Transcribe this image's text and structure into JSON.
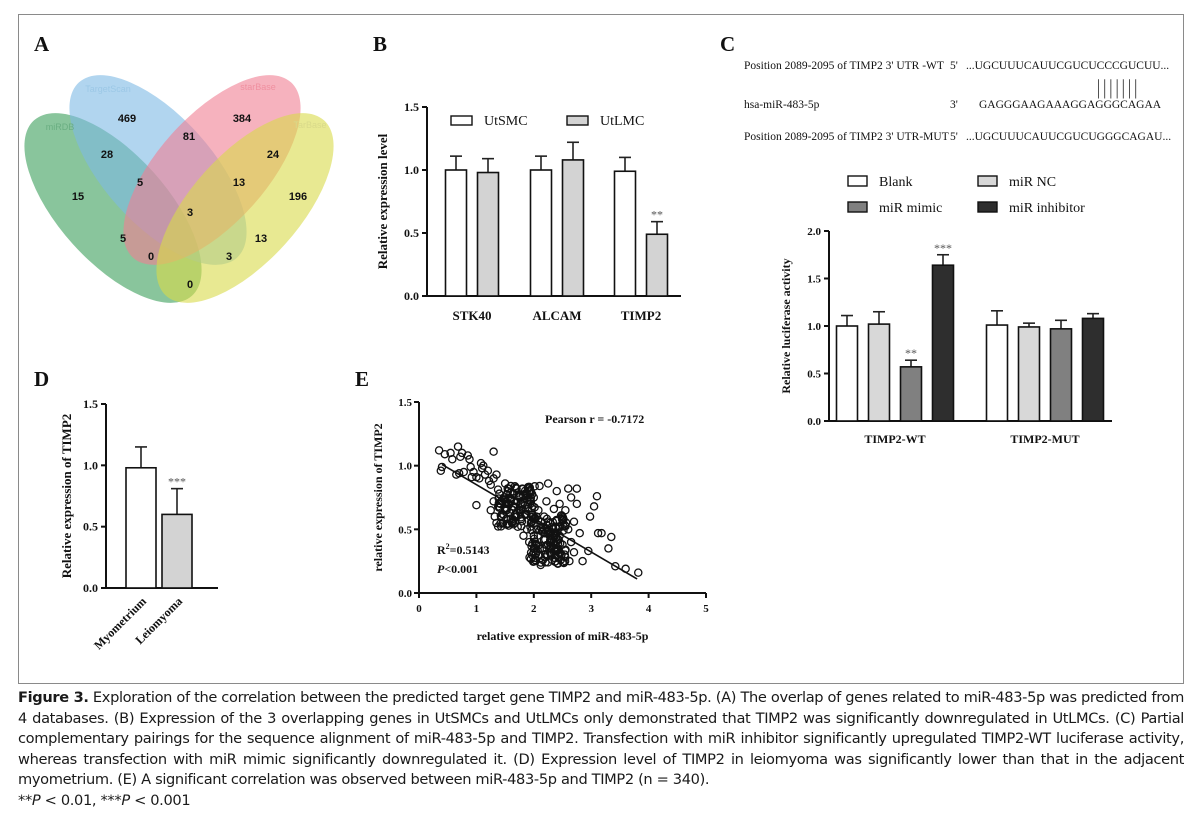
{
  "figure": {
    "caption_title": "Figure 3.",
    "caption_text": " Exploration of the correlation between the predicted target gene TIMP2 and miR-483-5p. (A) The overlap of genes related to miR-483-5p was predicted from 4 databases. (B) Expression of the 3 overlapping genes in UtSMCs and UtLMCs only demonstrated that TIMP2 was significantly downregulated in UtLMCs. (C) Partial complementary pairings for the sequence alignment of miR-483-5p and TIMP2. Transfection with miR inhibitor significantly upregulated TIMP2-WT luciferase activity, whereas transfection with miR mimic significantly downregulated it. (D) Expression level of TIMP2 in leiomyoma was significantly lower than that in the adjacent myometrium. (E) A significant correlation was observed between miR-483-5p and TIMP2 (n = 340).",
    "caption_footnote": "**P < 0.01, ***P < 0.001",
    "panel_letters": {
      "A": "A",
      "B": "B",
      "C": "C",
      "D": "D",
      "E": "E"
    }
  },
  "sequence": {
    "rows": [
      {
        "label": "Position 2089-2095 of TIMP2 3' UTR -WT",
        "end": "5'",
        "seq": "...UGCUUUCAUUCGUCUCCCGUCUU..."
      },
      {
        "label": "hsa-miR-483-5p",
        "end": "3'",
        "seq": "GAGGGAAGAAAGGAGGGCAGAA"
      },
      {
        "label": "Position 2089-2095 of TIMP2 3' UTR-MUT",
        "end": "5'",
        "seq": "...UGCUUUCAUUCGUCUGGGCAGAU..."
      }
    ],
    "pairing_marks": "|||||||"
  },
  "chart_data": [
    {
      "id": "A",
      "type": "venn",
      "title": "",
      "sets": [
        {
          "name": "miRDB",
          "color": "#3a9e5a"
        },
        {
          "name": "TargetScan",
          "color": "#7db9e4"
        },
        {
          "name": "starBase",
          "color": "#f07f93"
        },
        {
          "name": "TarBase",
          "color": "#d9da4a"
        }
      ],
      "regions": [
        {
          "sets": [
            "miRDB"
          ],
          "value": 15
        },
        {
          "sets": [
            "TargetScan"
          ],
          "value": 469
        },
        {
          "sets": [
            "starBase"
          ],
          "value": 384
        },
        {
          "sets": [
            "TarBase"
          ],
          "value": 196
        },
        {
          "sets": [
            "miRDB",
            "TargetScan"
          ],
          "value": 28
        },
        {
          "sets": [
            "TargetScan",
            "starBase"
          ],
          "value": 81
        },
        {
          "sets": [
            "starBase",
            "TarBase"
          ],
          "value": 24
        },
        {
          "sets": [
            "miRDB",
            "TargetScan",
            "starBase"
          ],
          "value": 5
        },
        {
          "sets": [
            "TargetScan",
            "starBase",
            "TarBase"
          ],
          "value": 13
        },
        {
          "sets": [
            "miRDB",
            "TargetScan",
            "starBase",
            "TarBase"
          ],
          "value": 3
        },
        {
          "sets": [
            "miRDB",
            "starBase"
          ],
          "value": 5
        },
        {
          "sets": [
            "TargetScan",
            "TarBase"
          ],
          "value": 13
        },
        {
          "sets": [
            "miRDB",
            "starBase",
            "TarBase"
          ],
          "value": 0
        },
        {
          "sets": [
            "miRDB",
            "TargetScan",
            "TarBase"
          ],
          "value": 3
        },
        {
          "sets": [
            "miRDB",
            "TarBase"
          ],
          "value": 0
        }
      ]
    },
    {
      "id": "B",
      "type": "bar",
      "title": "",
      "xlabel": "",
      "ylabel": "Relative expression level",
      "ylim": [
        0,
        1.5
      ],
      "yticks": [
        "0.0",
        "0.5",
        "1.0",
        "1.5"
      ],
      "categories": [
        "STK40",
        "ALCAM",
        "TIMP2"
      ],
      "legend": "top",
      "series": [
        {
          "name": "UtSMC",
          "color": "#ffffff",
          "values": [
            1.0,
            1.0,
            0.99
          ],
          "errors": [
            0.11,
            0.11,
            0.11
          ]
        },
        {
          "name": "UtLMC",
          "color": "#d3d3d3",
          "values": [
            0.98,
            1.08,
            0.49
          ],
          "errors": [
            0.11,
            0.14,
            0.1
          ]
        }
      ],
      "annotations": [
        {
          "category": "TIMP2",
          "series": "UtLMC",
          "text": "**"
        }
      ]
    },
    {
      "id": "C",
      "type": "bar",
      "title": "",
      "xlabel": "",
      "ylabel": "Relative luciferase activity",
      "ylim": [
        0,
        2.0
      ],
      "yticks": [
        "0.0",
        "0.5",
        "1.0",
        "1.5",
        "2.0"
      ],
      "categories": [
        "TIMP2-WT",
        "TIMP2-MUT"
      ],
      "legend": "top",
      "series": [
        {
          "name": "Blank",
          "color": "#ffffff",
          "values": [
            1.0,
            1.01
          ],
          "errors": [
            0.11,
            0.15
          ]
        },
        {
          "name": "miR NC",
          "color": "#d8d8d8",
          "values": [
            1.02,
            0.99
          ],
          "errors": [
            0.13,
            0.04
          ]
        },
        {
          "name": "miR mimic",
          "color": "#808080",
          "values": [
            0.57,
            0.97
          ],
          "errors": [
            0.07,
            0.09
          ]
        },
        {
          "name": "miR inhibitor",
          "color": "#2e2e2e",
          "values": [
            1.64,
            1.08
          ],
          "errors": [
            0.11,
            0.05
          ]
        }
      ],
      "annotations": [
        {
          "category": "TIMP2-WT",
          "series": "miR mimic",
          "text": "**"
        },
        {
          "category": "TIMP2-WT",
          "series": "miR inhibitor",
          "text": "***"
        }
      ]
    },
    {
      "id": "D",
      "type": "bar",
      "title": "",
      "xlabel": "",
      "ylabel": "Relative expression of TIMP2",
      "ylim": [
        0,
        1.5
      ],
      "yticks": [
        "0.0",
        "0.5",
        "1.0",
        "1.5"
      ],
      "categories": [
        "Myometrium",
        "Leiomyoma"
      ],
      "series": [
        {
          "name": "TIMP2",
          "colors": [
            "#ffffff",
            "#d3d3d3"
          ],
          "values": [
            0.98,
            0.6
          ],
          "errors": [
            0.17,
            0.21
          ]
        }
      ],
      "annotations": [
        {
          "category": "Leiomyoma",
          "text": "***"
        }
      ]
    },
    {
      "id": "E",
      "type": "scatter",
      "title": "",
      "xlabel": "relative expression of miR-483-5p",
      "ylabel": "relative expression of TIMP2",
      "xlim": [
        0,
        5
      ],
      "ylim": [
        0,
        1.5
      ],
      "xticks": [
        "0",
        "1",
        "2",
        "3",
        "4",
        "5"
      ],
      "yticks": [
        "0.0",
        "0.5",
        "1.0",
        "1.5"
      ],
      "n": 340,
      "pearson_label": "Pearson r = -0.7172",
      "r2_label_prefix": "R",
      "r2_label_sup": "2",
      "r2_label_value": "=0.5143",
      "p_label_italic": "P",
      "p_label_value": "<0.001",
      "regression": {
        "x": [
          0.4,
          3.8
        ],
        "y": [
          1.01,
          0.11
        ]
      },
      "points": [
        [
          0.35,
          1.12
        ],
        [
          0.38,
          0.96
        ],
        [
          0.4,
          0.99
        ],
        [
          0.45,
          1.09
        ],
        [
          0.55,
          1.1
        ],
        [
          0.58,
          1.05
        ],
        [
          0.65,
          0.93
        ],
        [
          0.68,
          1.15
        ],
        [
          0.7,
          0.94
        ],
        [
          0.72,
          1.07
        ],
        [
          0.75,
          1.1
        ],
        [
          0.78,
          0.95
        ],
        [
          0.85,
          1.08
        ],
        [
          0.88,
          1.05
        ],
        [
          0.9,
          0.99
        ],
        [
          0.92,
          0.91
        ],
        [
          0.95,
          0.95
        ],
        [
          1.0,
          0.91
        ],
        [
          1.0,
          0.69
        ],
        [
          1.05,
          0.9
        ],
        [
          1.08,
          1.02
        ],
        [
          1.1,
          0.98
        ],
        [
          1.12,
          1.0
        ],
        [
          1.15,
          0.93
        ],
        [
          1.2,
          0.96
        ],
        [
          1.22,
          0.88
        ],
        [
          1.25,
          0.85
        ],
        [
          1.3,
          1.11
        ],
        [
          1.3,
          0.9
        ],
        [
          1.35,
          0.93
        ],
        [
          1.25,
          0.65
        ],
        [
          1.3,
          0.72
        ],
        [
          1.32,
          0.6
        ],
        [
          1.35,
          0.55
        ],
        [
          1.38,
          0.68
        ],
        [
          1.4,
          0.78
        ],
        [
          1.42,
          0.7
        ],
        [
          1.45,
          0.62
        ],
        [
          1.48,
          0.75
        ],
        [
          1.5,
          0.86
        ],
        [
          1.5,
          0.66
        ],
        [
          1.52,
          0.58
        ],
        [
          1.55,
          0.8
        ],
        [
          1.55,
          0.7
        ],
        [
          1.58,
          0.63
        ],
        [
          1.6,
          0.84
        ],
        [
          1.6,
          0.74
        ],
        [
          1.62,
          0.55
        ],
        [
          1.65,
          0.68
        ],
        [
          1.65,
          0.78
        ],
        [
          1.68,
          0.6
        ],
        [
          1.7,
          0.82
        ],
        [
          1.7,
          0.72
        ],
        [
          1.72,
          0.52
        ],
        [
          1.75,
          0.65
        ],
        [
          1.75,
          0.76
        ],
        [
          1.78,
          0.58
        ],
        [
          1.8,
          0.82
        ],
        [
          1.8,
          0.7
        ],
        [
          1.82,
          0.45
        ],
        [
          1.85,
          0.62
        ],
        [
          1.85,
          0.78
        ],
        [
          1.88,
          0.5
        ],
        [
          1.9,
          0.82
        ],
        [
          1.9,
          0.66
        ],
        [
          1.92,
          0.4
        ],
        [
          1.95,
          0.72
        ],
        [
          1.95,
          0.55
        ],
        [
          1.98,
          0.6
        ],
        [
          2.0,
          0.75
        ],
        [
          2.0,
          0.45
        ],
        [
          2.02,
          0.26
        ],
        [
          2.05,
          0.5
        ],
        [
          2.05,
          0.38
        ],
        [
          2.08,
          0.65
        ],
        [
          2.1,
          0.84
        ],
        [
          2.1,
          0.3
        ],
        [
          2.12,
          0.22
        ],
        [
          2.15,
          0.48
        ],
        [
          2.15,
          0.35
        ],
        [
          2.18,
          0.6
        ],
        [
          2.2,
          0.42
        ],
        [
          2.2,
          0.28
        ],
        [
          2.22,
          0.72
        ],
        [
          2.25,
          0.86
        ],
        [
          2.25,
          0.38
        ],
        [
          2.28,
          0.55
        ],
        [
          2.3,
          0.3
        ],
        [
          2.3,
          0.48
        ],
        [
          2.32,
          0.26
        ],
        [
          2.35,
          0.66
        ],
        [
          2.35,
          0.4
        ],
        [
          2.38,
          0.52
        ],
        [
          2.4,
          0.8
        ],
        [
          2.4,
          0.34
        ],
        [
          2.42,
          0.23
        ],
        [
          2.45,
          0.7
        ],
        [
          2.45,
          0.45
        ],
        [
          2.48,
          0.3
        ],
        [
          2.5,
          0.6
        ],
        [
          2.5,
          0.38
        ],
        [
          2.55,
          0.65
        ],
        [
          2.55,
          0.28
        ],
        [
          2.6,
          0.82
        ],
        [
          2.6,
          0.5
        ],
        [
          2.62,
          0.25
        ],
        [
          2.65,
          0.75
        ],
        [
          2.65,
          0.4
        ],
        [
          2.7,
          0.56
        ],
        [
          2.7,
          0.32
        ],
        [
          2.75,
          0.82
        ],
        [
          2.75,
          0.7
        ],
        [
          2.8,
          0.47
        ],
        [
          2.85,
          0.25
        ],
        [
          2.95,
          0.33
        ],
        [
          2.98,
          0.6
        ],
        [
          3.05,
          0.68
        ],
        [
          3.1,
          0.76
        ],
        [
          3.12,
          0.47
        ],
        [
          3.18,
          0.47
        ],
        [
          3.3,
          0.35
        ],
        [
          3.35,
          0.44
        ],
        [
          3.42,
          0.21
        ],
        [
          3.6,
          0.19
        ],
        [
          3.82,
          0.16
        ]
      ]
    }
  ]
}
